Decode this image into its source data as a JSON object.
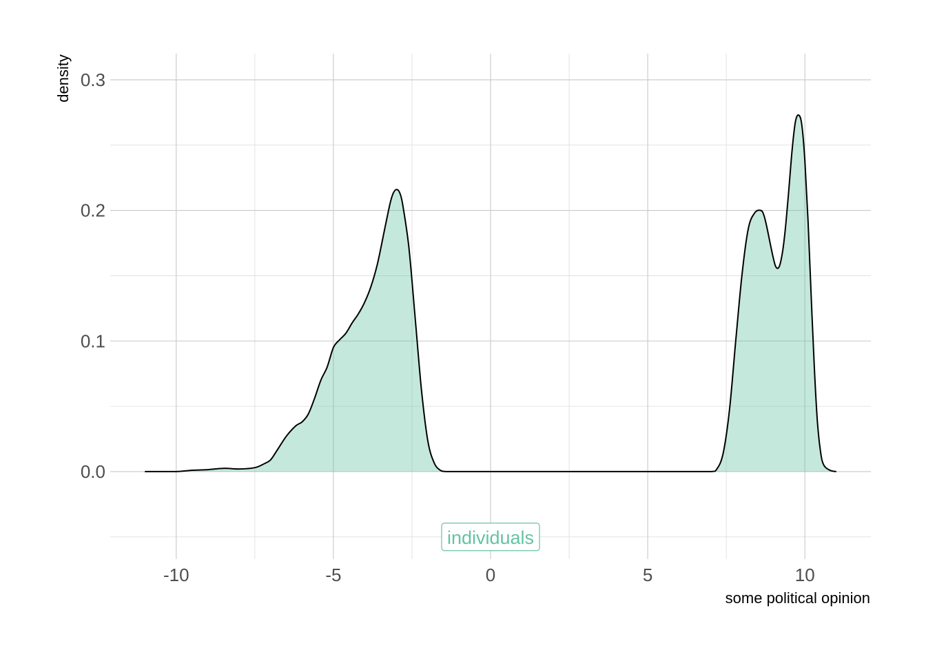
{
  "chart_data": {
    "type": "area",
    "xlabel": "some political opinion",
    "ylabel": "density",
    "xlim": [
      -12.1,
      12.1
    ],
    "ylim": [
      -0.067,
      0.32
    ],
    "x_ticks": [
      -10,
      -5,
      0,
      5,
      10
    ],
    "x_tick_labels": [
      "-10",
      "-5",
      "0",
      "5",
      "10"
    ],
    "y_ticks": [
      0.0,
      0.1,
      0.2,
      0.3
    ],
    "y_tick_labels": [
      "0.0",
      "0.1",
      "0.2",
      "0.3"
    ],
    "grid": true,
    "fill_color": "#66c2a5",
    "fill_opacity": 0.38,
    "line_color": "#000000",
    "annotation": {
      "text": "individuals",
      "x": 0,
      "y": -0.05,
      "color": "#66c2a5"
    },
    "series": [
      {
        "x": [
          -11,
          -10.5,
          -10,
          -9.5,
          -9,
          -8.5,
          -8,
          -7.5,
          -7.2,
          -7,
          -6.8,
          -6.5,
          -6.2,
          -6,
          -5.8,
          -5.6,
          -5.4,
          -5.2,
          -5,
          -4.8,
          -4.6,
          -4.4,
          -4.2,
          -4,
          -3.8,
          -3.6,
          -3.4,
          -3.2,
          -3.1,
          -3,
          -2.9,
          -2.8,
          -2.6,
          -2.4,
          -2.2,
          -2,
          -1.8,
          -1.6,
          -1.4,
          -1,
          0,
          2,
          4,
          6,
          7,
          7.2,
          7.4,
          7.6,
          7.8,
          8,
          8.2,
          8.4,
          8.6,
          8.7,
          8.8,
          9,
          9.1,
          9.2,
          9.3,
          9.4,
          9.5,
          9.6,
          9.7,
          9.8,
          9.9,
          10,
          10.1,
          10.2,
          10.3,
          10.4,
          10.5,
          10.6,
          10.8,
          11
        ],
        "y": [
          0,
          0,
          0,
          0.001,
          0.0015,
          0.0025,
          0.002,
          0.003,
          0.006,
          0.009,
          0.016,
          0.027,
          0.035,
          0.038,
          0.044,
          0.056,
          0.07,
          0.08,
          0.095,
          0.101,
          0.106,
          0.114,
          0.121,
          0.13,
          0.142,
          0.159,
          0.182,
          0.205,
          0.213,
          0.216,
          0.214,
          0.205,
          0.172,
          0.118,
          0.063,
          0.024,
          0.007,
          0.001,
          0,
          0,
          0,
          0,
          0,
          0,
          0,
          0.002,
          0.014,
          0.047,
          0.1,
          0.151,
          0.186,
          0.198,
          0.2,
          0.196,
          0.186,
          0.163,
          0.156,
          0.158,
          0.17,
          0.191,
          0.219,
          0.248,
          0.268,
          0.273,
          0.266,
          0.238,
          0.192,
          0.135,
          0.08,
          0.038,
          0.015,
          0.005,
          0.001,
          0
        ]
      }
    ]
  }
}
